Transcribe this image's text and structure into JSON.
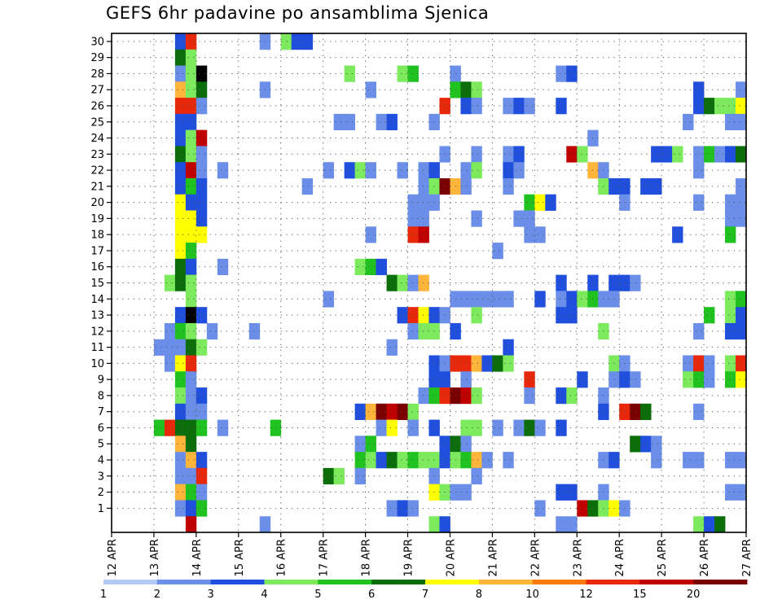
{
  "chart_data": {
    "type": "heatmap",
    "title": "GEFS 6hr padavine po ansamblima Sjenica",
    "xlabel": "",
    "ylabel": "",
    "x_tick_labels": [
      "12 APR",
      "13 APR",
      "14 APR",
      "15 APR",
      "16 APR",
      "17 APR",
      "18 APR",
      "19 APR",
      "20 APR",
      "21 APR",
      "22 APR",
      "23 APR",
      "24 APR",
      "25 APR",
      "26 APR",
      "27 APR"
    ],
    "y_tick_labels": [
      "1",
      "2",
      "3",
      "4",
      "5",
      "6",
      "7",
      "8",
      "9",
      "10",
      "11",
      "12",
      "13",
      "14",
      "15",
      "16",
      "17",
      "18",
      "19",
      "20",
      "21",
      "22",
      "23",
      "24",
      "25",
      "26",
      "27",
      "28",
      "29",
      "30"
    ],
    "time_steps": 60,
    "members": 30,
    "grid": true,
    "colorbar": {
      "labels": [
        "1",
        "2",
        "3",
        "4",
        "5",
        "6",
        "7",
        "8",
        "10",
        "12",
        "15",
        "20"
      ],
      "colors": [
        "#b4c8f4",
        "#6b8ee8",
        "#1f4fdc",
        "#7cea5c",
        "#1fc21f",
        "#0b6e0b",
        "#ffff00",
        "#ffb43a",
        "#ff7a00",
        "#e8280a",
        "#c00000",
        "#7a0000"
      ]
    },
    "cells": [
      [
        6,
        30,
        2
      ],
      [
        7,
        30,
        9
      ],
      [
        14,
        30,
        1
      ],
      [
        16,
        30,
        3
      ],
      [
        17,
        30,
        2
      ],
      [
        18,
        30,
        2
      ],
      [
        6,
        29,
        5
      ],
      [
        7,
        29,
        3
      ],
      [
        6,
        28,
        1
      ],
      [
        7,
        28,
        3
      ],
      [
        8,
        28,
        12
      ],
      [
        22,
        28,
        3
      ],
      [
        27,
        28,
        3
      ],
      [
        28,
        28,
        4
      ],
      [
        32,
        28,
        1
      ],
      [
        42,
        28,
        1
      ],
      [
        43,
        28,
        2
      ],
      [
        6,
        27,
        7
      ],
      [
        7,
        27,
        3
      ],
      [
        8,
        27,
        5
      ],
      [
        14,
        27,
        1
      ],
      [
        24,
        27,
        1
      ],
      [
        32,
        27,
        4
      ],
      [
        33,
        27,
        5
      ],
      [
        34,
        27,
        3
      ],
      [
        55,
        27,
        2
      ],
      [
        59,
        27,
        1
      ],
      [
        6,
        26,
        9
      ],
      [
        7,
        26,
        9
      ],
      [
        8,
        26,
        1
      ],
      [
        31,
        26,
        9
      ],
      [
        33,
        26,
        2
      ],
      [
        34,
        26,
        1
      ],
      [
        37,
        26,
        1
      ],
      [
        38,
        26,
        2
      ],
      [
        39,
        26,
        1
      ],
      [
        42,
        26,
        2
      ],
      [
        55,
        26,
        2
      ],
      [
        56,
        26,
        5
      ],
      [
        57,
        26,
        3
      ],
      [
        58,
        26,
        3
      ],
      [
        59,
        26,
        6
      ],
      [
        6,
        25,
        2
      ],
      [
        7,
        25,
        2
      ],
      [
        21,
        25,
        1
      ],
      [
        22,
        25,
        1
      ],
      [
        25,
        25,
        1
      ],
      [
        26,
        25,
        2
      ],
      [
        30,
        25,
        1
      ],
      [
        54,
        25,
        1
      ],
      [
        58,
        25,
        1
      ],
      [
        59,
        25,
        1
      ],
      [
        6,
        24,
        2
      ],
      [
        7,
        24,
        3
      ],
      [
        8,
        24,
        10
      ],
      [
        45,
        24,
        1
      ],
      [
        6,
        23,
        5
      ],
      [
        7,
        23,
        3
      ],
      [
        8,
        23,
        1
      ],
      [
        31,
        23,
        1
      ],
      [
        34,
        23,
        1
      ],
      [
        37,
        23,
        1
      ],
      [
        38,
        23,
        2
      ],
      [
        43,
        23,
        10
      ],
      [
        44,
        23,
        3
      ],
      [
        51,
        23,
        2
      ],
      [
        52,
        23,
        2
      ],
      [
        53,
        23,
        3
      ],
      [
        55,
        23,
        1
      ],
      [
        56,
        23,
        4
      ],
      [
        57,
        23,
        1
      ],
      [
        58,
        23,
        2
      ],
      [
        59,
        23,
        5
      ],
      [
        6,
        22,
        2
      ],
      [
        7,
        22,
        10
      ],
      [
        8,
        22,
        1
      ],
      [
        10,
        22,
        1
      ],
      [
        20,
        22,
        1
      ],
      [
        22,
        22,
        2
      ],
      [
        23,
        22,
        3
      ],
      [
        24,
        22,
        1
      ],
      [
        27,
        22,
        1
      ],
      [
        29,
        22,
        1
      ],
      [
        30,
        22,
        2
      ],
      [
        33,
        22,
        1
      ],
      [
        34,
        22,
        3
      ],
      [
        37,
        22,
        2
      ],
      [
        38,
        22,
        1
      ],
      [
        45,
        22,
        7
      ],
      [
        46,
        22,
        1
      ],
      [
        55,
        22,
        1
      ],
      [
        6,
        21,
        2
      ],
      [
        7,
        21,
        4
      ],
      [
        8,
        21,
        2
      ],
      [
        18,
        21,
        1
      ],
      [
        29,
        21,
        1
      ],
      [
        30,
        21,
        3
      ],
      [
        31,
        21,
        11
      ],
      [
        32,
        21,
        7
      ],
      [
        33,
        21,
        1
      ],
      [
        37,
        21,
        1
      ],
      [
        46,
        21,
        3
      ],
      [
        47,
        21,
        2
      ],
      [
        48,
        21,
        2
      ],
      [
        50,
        21,
        2
      ],
      [
        51,
        21,
        2
      ],
      [
        59,
        21,
        1
      ],
      [
        6,
        20,
        6
      ],
      [
        7,
        20,
        2
      ],
      [
        8,
        20,
        2
      ],
      [
        28,
        20,
        1
      ],
      [
        29,
        20,
        1
      ],
      [
        30,
        20,
        1
      ],
      [
        39,
        20,
        4
      ],
      [
        40,
        20,
        6
      ],
      [
        41,
        20,
        2
      ],
      [
        48,
        20,
        1
      ],
      [
        55,
        20,
        1
      ],
      [
        58,
        20,
        1
      ],
      [
        59,
        20,
        1
      ],
      [
        6,
        19,
        6
      ],
      [
        7,
        19,
        6
      ],
      [
        8,
        19,
        2
      ],
      [
        28,
        19,
        1
      ],
      [
        29,
        19,
        1
      ],
      [
        34,
        19,
        1
      ],
      [
        38,
        19,
        1
      ],
      [
        39,
        19,
        1
      ],
      [
        58,
        19,
        1
      ],
      [
        59,
        19,
        1
      ],
      [
        6,
        18,
        6
      ],
      [
        7,
        18,
        6
      ],
      [
        8,
        18,
        6
      ],
      [
        24,
        18,
        1
      ],
      [
        28,
        18,
        9
      ],
      [
        29,
        18,
        10
      ],
      [
        39,
        18,
        1
      ],
      [
        40,
        18,
        1
      ],
      [
        53,
        18,
        2
      ],
      [
        58,
        18,
        4
      ],
      [
        6,
        17,
        6
      ],
      [
        7,
        17,
        4
      ],
      [
        36,
        17,
        1
      ],
      [
        6,
        16,
        5
      ],
      [
        7,
        16,
        2
      ],
      [
        10,
        16,
        1
      ],
      [
        23,
        16,
        3
      ],
      [
        24,
        16,
        4
      ],
      [
        25,
        16,
        2
      ],
      [
        5,
        15,
        3
      ],
      [
        6,
        15,
        5
      ],
      [
        7,
        15,
        3
      ],
      [
        26,
        15,
        5
      ],
      [
        27,
        15,
        3
      ],
      [
        28,
        15,
        1
      ],
      [
        29,
        15,
        7
      ],
      [
        42,
        15,
        2
      ],
      [
        45,
        15,
        2
      ],
      [
        47,
        15,
        2
      ],
      [
        48,
        15,
        2
      ],
      [
        49,
        15,
        1
      ],
      [
        7,
        14,
        3
      ],
      [
        20,
        14,
        1
      ],
      [
        32,
        14,
        1
      ],
      [
        33,
        14,
        1
      ],
      [
        34,
        14,
        1
      ],
      [
        35,
        14,
        1
      ],
      [
        36,
        14,
        1
      ],
      [
        37,
        14,
        1
      ],
      [
        40,
        14,
        2
      ],
      [
        42,
        14,
        1
      ],
      [
        43,
        14,
        2
      ],
      [
        44,
        14,
        3
      ],
      [
        45,
        14,
        4
      ],
      [
        46,
        14,
        1
      ],
      [
        47,
        14,
        1
      ],
      [
        58,
        14,
        3
      ],
      [
        59,
        14,
        4
      ],
      [
        6,
        13,
        2
      ],
      [
        7,
        13,
        12
      ],
      [
        8,
        13,
        2
      ],
      [
        27,
        13,
        2
      ],
      [
        28,
        13,
        9
      ],
      [
        29,
        13,
        6
      ],
      [
        30,
        13,
        2
      ],
      [
        31,
        13,
        1
      ],
      [
        34,
        13,
        3
      ],
      [
        42,
        13,
        2
      ],
      [
        43,
        13,
        2
      ],
      [
        56,
        13,
        4
      ],
      [
        58,
        13,
        3
      ],
      [
        59,
        13,
        2
      ],
      [
        5,
        12,
        1
      ],
      [
        6,
        12,
        4
      ],
      [
        7,
        12,
        3
      ],
      [
        9,
        12,
        1
      ],
      [
        13,
        12,
        1
      ],
      [
        28,
        12,
        1
      ],
      [
        29,
        12,
        3
      ],
      [
        30,
        12,
        3
      ],
      [
        32,
        12,
        2
      ],
      [
        46,
        12,
        3
      ],
      [
        55,
        12,
        1
      ],
      [
        58,
        12,
        2
      ],
      [
        59,
        12,
        2
      ],
      [
        4,
        11,
        1
      ],
      [
        5,
        11,
        1
      ],
      [
        6,
        11,
        1
      ],
      [
        7,
        11,
        5
      ],
      [
        8,
        11,
        3
      ],
      [
        26,
        11,
        1
      ],
      [
        37,
        11,
        2
      ],
      [
        5,
        10,
        1
      ],
      [
        6,
        10,
        6
      ],
      [
        7,
        10,
        9
      ],
      [
        30,
        10,
        2
      ],
      [
        31,
        10,
        1
      ],
      [
        32,
        10,
        9
      ],
      [
        33,
        10,
        9
      ],
      [
        34,
        10,
        7
      ],
      [
        35,
        10,
        2
      ],
      [
        36,
        10,
        5
      ],
      [
        37,
        10,
        3
      ],
      [
        47,
        10,
        3
      ],
      [
        48,
        10,
        1
      ],
      [
        54,
        10,
        1
      ],
      [
        55,
        10,
        9
      ],
      [
        56,
        10,
        1
      ],
      [
        58,
        10,
        3
      ],
      [
        59,
        10,
        9
      ],
      [
        6,
        9,
        4
      ],
      [
        7,
        9,
        1
      ],
      [
        30,
        9,
        2
      ],
      [
        31,
        9,
        2
      ],
      [
        33,
        9,
        1
      ],
      [
        39,
        9,
        9
      ],
      [
        44,
        9,
        2
      ],
      [
        47,
        9,
        1
      ],
      [
        48,
        9,
        2
      ],
      [
        49,
        9,
        1
      ],
      [
        54,
        9,
        3
      ],
      [
        55,
        9,
        4
      ],
      [
        56,
        9,
        1
      ],
      [
        58,
        9,
        4
      ],
      [
        59,
        9,
        6
      ],
      [
        6,
        8,
        3
      ],
      [
        7,
        8,
        1
      ],
      [
        8,
        8,
        2
      ],
      [
        29,
        8,
        1
      ],
      [
        30,
        8,
        4
      ],
      [
        31,
        8,
        9
      ],
      [
        32,
        8,
        11
      ],
      [
        33,
        8,
        10
      ],
      [
        34,
        8,
        3
      ],
      [
        39,
        8,
        1
      ],
      [
        42,
        8,
        2
      ],
      [
        43,
        8,
        3
      ],
      [
        46,
        8,
        1
      ],
      [
        6,
        7,
        2
      ],
      [
        7,
        7,
        1
      ],
      [
        8,
        7,
        1
      ],
      [
        23,
        7,
        2
      ],
      [
        24,
        7,
        7
      ],
      [
        25,
        7,
        11
      ],
      [
        26,
        7,
        10
      ],
      [
        27,
        7,
        11
      ],
      [
        28,
        7,
        3
      ],
      [
        46,
        7,
        2
      ],
      [
        48,
        7,
        9
      ],
      [
        49,
        7,
        11
      ],
      [
        50,
        7,
        5
      ],
      [
        55,
        7,
        1
      ],
      [
        4,
        6,
        4
      ],
      [
        5,
        6,
        9
      ],
      [
        6,
        6,
        5
      ],
      [
        7,
        6,
        5
      ],
      [
        8,
        6,
        4
      ],
      [
        10,
        6,
        1
      ],
      [
        15,
        6,
        4
      ],
      [
        25,
        6,
        1
      ],
      [
        26,
        6,
        6
      ],
      [
        28,
        6,
        1
      ],
      [
        30,
        6,
        2
      ],
      [
        33,
        6,
        3
      ],
      [
        34,
        6,
        3
      ],
      [
        36,
        6,
        1
      ],
      [
        38,
        6,
        1
      ],
      [
        39,
        6,
        5
      ],
      [
        40,
        6,
        1
      ],
      [
        42,
        6,
        2
      ],
      [
        6,
        5,
        7
      ],
      [
        7,
        5,
        5
      ],
      [
        23,
        5,
        1
      ],
      [
        24,
        5,
        4
      ],
      [
        31,
        5,
        2
      ],
      [
        32,
        5,
        5
      ],
      [
        33,
        5,
        1
      ],
      [
        49,
        5,
        5
      ],
      [
        50,
        5,
        2
      ],
      [
        51,
        5,
        1
      ],
      [
        6,
        4,
        1
      ],
      [
        7,
        4,
        7
      ],
      [
        8,
        4,
        2
      ],
      [
        23,
        4,
        4
      ],
      [
        24,
        4,
        3
      ],
      [
        25,
        4,
        2
      ],
      [
        26,
        4,
        5
      ],
      [
        27,
        4,
        3
      ],
      [
        28,
        4,
        4
      ],
      [
        29,
        4,
        3
      ],
      [
        30,
        4,
        3
      ],
      [
        31,
        4,
        2
      ],
      [
        32,
        4,
        3
      ],
      [
        33,
        4,
        4
      ],
      [
        34,
        4,
        7
      ],
      [
        35,
        4,
        1
      ],
      [
        37,
        4,
        1
      ],
      [
        46,
        4,
        1
      ],
      [
        47,
        4,
        2
      ],
      [
        51,
        4,
        1
      ],
      [
        54,
        4,
        1
      ],
      [
        55,
        4,
        1
      ],
      [
        58,
        4,
        1
      ],
      [
        59,
        4,
        1
      ],
      [
        6,
        3,
        1
      ],
      [
        7,
        3,
        1
      ],
      [
        8,
        3,
        9
      ],
      [
        20,
        3,
        5
      ],
      [
        21,
        3,
        3
      ],
      [
        23,
        3,
        1
      ],
      [
        30,
        3,
        1
      ],
      [
        34,
        3,
        1
      ],
      [
        6,
        2,
        7
      ],
      [
        7,
        2,
        4
      ],
      [
        8,
        2,
        1
      ],
      [
        30,
        2,
        6
      ],
      [
        31,
        2,
        3
      ],
      [
        32,
        2,
        1
      ],
      [
        33,
        2,
        1
      ],
      [
        42,
        2,
        2
      ],
      [
        43,
        2,
        2
      ],
      [
        46,
        2,
        1
      ],
      [
        58,
        2,
        1
      ],
      [
        59,
        2,
        1
      ],
      [
        6,
        1,
        1
      ],
      [
        7,
        1,
        2
      ],
      [
        8,
        1,
        4
      ],
      [
        26,
        1,
        1
      ],
      [
        27,
        1,
        2
      ],
      [
        28,
        1,
        1
      ],
      [
        40,
        1,
        1
      ],
      [
        44,
        1,
        10
      ],
      [
        45,
        1,
        5
      ],
      [
        46,
        1,
        3
      ],
      [
        47,
        1,
        6
      ],
      [
        48,
        1,
        1
      ],
      [
        7,
        0,
        10
      ],
      [
        14,
        0,
        1
      ],
      [
        30,
        0,
        3
      ],
      [
        31,
        0,
        2
      ],
      [
        42,
        0,
        1
      ],
      [
        43,
        0,
        1
      ],
      [
        55,
        0,
        3
      ],
      [
        56,
        0,
        2
      ],
      [
        57,
        0,
        5
      ]
    ]
  }
}
